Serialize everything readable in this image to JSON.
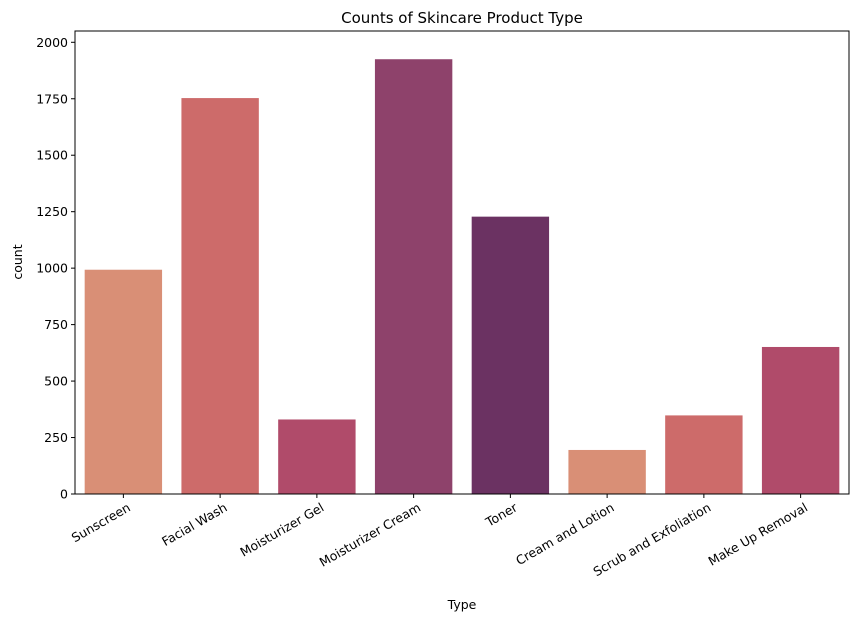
{
  "chart_data": {
    "type": "bar",
    "title": "Counts of Skincare Product Type",
    "xlabel": "Type",
    "ylabel": "count",
    "categories": [
      "Sunscreen",
      "Facial Wash",
      "Moisturizer Gel",
      "Moisturizer Cream",
      "Toner",
      "Cream and Lotion",
      "Scrub and Exfoliation",
      "Make Up Removal"
    ],
    "values": [
      993,
      1753,
      330,
      1925,
      1228,
      195,
      348,
      651
    ],
    "colors": [
      "#d98f76",
      "#cd6b6a",
      "#b04b6a",
      "#8e426b",
      "#6b3262",
      "#d98f76",
      "#cd6b6a",
      "#b04b6a"
    ],
    "ylim": [
      0,
      2050
    ],
    "yticks": [
      0,
      250,
      500,
      750,
      1000,
      1250,
      1500,
      1750,
      2000
    ],
    "grid": false,
    "legend": "none"
  }
}
